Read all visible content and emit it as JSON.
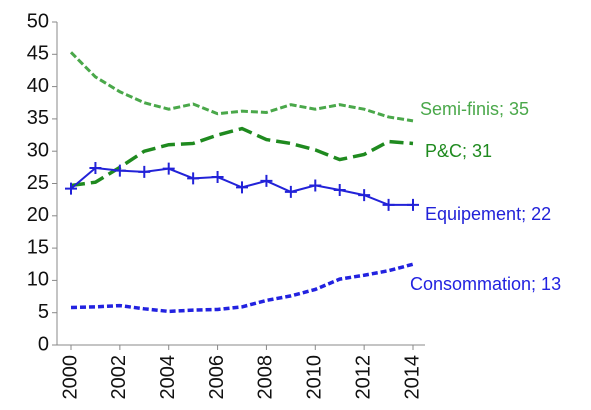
{
  "chart_data": {
    "type": "line",
    "x": [
      2000,
      2001,
      2002,
      2003,
      2004,
      2005,
      2006,
      2007,
      2008,
      2009,
      2010,
      2011,
      2012,
      2013,
      2014
    ],
    "xlim": [
      2000,
      2014
    ],
    "xticks": [
      2000,
      2002,
      2004,
      2006,
      2008,
      2010,
      2012,
      2014
    ],
    "ylim": [
      0,
      50
    ],
    "yticks": [
      0,
      5,
      10,
      15,
      20,
      25,
      30,
      35,
      40,
      45,
      50
    ],
    "series": [
      {
        "name": "Semi-finis; 35",
        "color": "#4aa84a",
        "style": "double-dash",
        "values": [
          45.3,
          41.5,
          39.2,
          37.5,
          36.5,
          37.3,
          35.8,
          36.2,
          36.0,
          37.2,
          36.5,
          37.2,
          36.5,
          35.3,
          34.7
        ]
      },
      {
        "name": "P&C; 31",
        "color": "#1f8a1f",
        "style": "long-dash",
        "values": [
          24.7,
          25.2,
          27.5,
          30.0,
          31.0,
          31.2,
          32.5,
          33.5,
          31.8,
          31.2,
          30.2,
          28.7,
          29.5,
          31.5,
          31.2
        ]
      },
      {
        "name": "Equipement; 22",
        "color": "#2222d8",
        "style": "solid-plus",
        "values": [
          24.2,
          27.4,
          27.0,
          26.8,
          27.3,
          25.8,
          26.0,
          24.4,
          25.4,
          23.7,
          24.7,
          24.0,
          23.2,
          21.7,
          21.7
        ]
      },
      {
        "name": "Consommation; 13",
        "color": "#2222e0",
        "style": "short-dash",
        "values": [
          5.8,
          5.9,
          6.1,
          5.6,
          5.2,
          5.4,
          5.5,
          5.9,
          6.9,
          7.6,
          8.6,
          10.2,
          10.8,
          11.5,
          12.5
        ]
      }
    ]
  }
}
